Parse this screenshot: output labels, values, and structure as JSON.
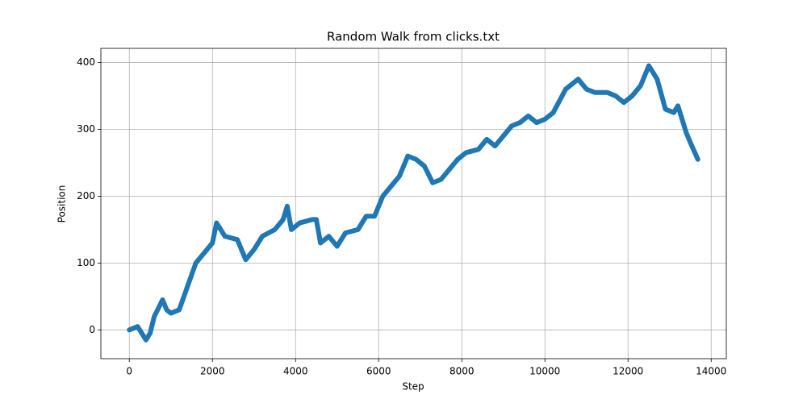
{
  "chart_data": {
    "type": "line",
    "title": "Random Walk from clicks.txt",
    "x_label": "Step",
    "y_label": "Position",
    "x": [
      0,
      200,
      400,
      500,
      600,
      800,
      900,
      1000,
      1200,
      1400,
      1600,
      1800,
      2000,
      2100,
      2300,
      2600,
      2800,
      3000,
      3200,
      3500,
      3700,
      3800,
      3900,
      4100,
      4400,
      4500,
      4600,
      4800,
      5000,
      5200,
      5500,
      5700,
      5900,
      6100,
      6300,
      6500,
      6700,
      6900,
      7100,
      7300,
      7500,
      7700,
      7900,
      8100,
      8400,
      8600,
      8800,
      9000,
      9200,
      9400,
      9600,
      9800,
      10000,
      10200,
      10500,
      10800,
      11000,
      11200,
      11500,
      11700,
      11900,
      12100,
      12300,
      12500,
      12700,
      12900,
      13100,
      13200,
      13400,
      13500,
      13680
    ],
    "series": [
      {
        "name": "Position",
        "color": "#1f77b4",
        "values": [
          0,
          5,
          -15,
          -5,
          20,
          45,
          30,
          25,
          30,
          65,
          100,
          115,
          130,
          160,
          140,
          135,
          105,
          120,
          140,
          150,
          165,
          185,
          150,
          160,
          165,
          165,
          130,
          140,
          125,
          145,
          150,
          170,
          170,
          200,
          215,
          230,
          260,
          255,
          245,
          220,
          225,
          240,
          255,
          265,
          270,
          285,
          275,
          290,
          305,
          310,
          320,
          310,
          315,
          325,
          360,
          375,
          360,
          355,
          355,
          350,
          340,
          350,
          365,
          395,
          375,
          330,
          325,
          335,
          295,
          280,
          255
        ]
      }
    ],
    "xlim": [
      -684,
      14364
    ],
    "ylim": [
      -43,
      421
    ],
    "xticks": [
      0,
      2000,
      4000,
      6000,
      8000,
      10000,
      12000,
      14000
    ],
    "yticks": [
      0,
      100,
      200,
      300,
      400
    ],
    "grid": true
  }
}
